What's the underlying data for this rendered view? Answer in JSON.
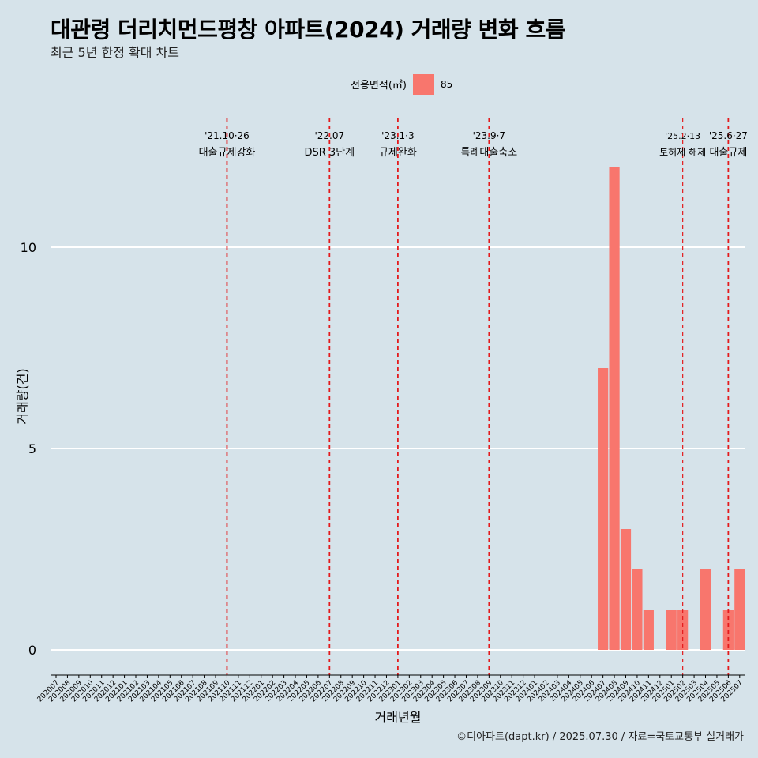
{
  "header": {
    "title": "대관령 더리치먼드평창 아파트(2024) 거래량 변화 흐름",
    "subtitle": "최근 5년 한정 확대 차트"
  },
  "footer": {
    "caption": "©디아파트(dapt.kr) / 2025.07.30 / 자료=국토교통부 실거래가"
  },
  "chart_data": {
    "type": "bar",
    "xlabel": "거래년월",
    "ylabel": "거래량(건)",
    "ylim": [
      0,
      12.5
    ],
    "yticks": [
      0,
      5,
      10
    ],
    "grid": "horizontal",
    "legend": {
      "title": "전용면적(㎡)",
      "placement": "top",
      "entries": [
        {
          "label": "85",
          "color": "#f8766d"
        }
      ]
    },
    "categories": [
      "202007",
      "202008",
      "202009",
      "202010",
      "202011",
      "202012",
      "202101",
      "202102",
      "202103",
      "202104",
      "202105",
      "202106",
      "202107",
      "202108",
      "202109",
      "202110",
      "202111",
      "202112",
      "202201",
      "202202",
      "202203",
      "202204",
      "202205",
      "202206",
      "202207",
      "202208",
      "202209",
      "202210",
      "202211",
      "202212",
      "202301",
      "202302",
      "202303",
      "202304",
      "202305",
      "202306",
      "202307",
      "202308",
      "202309",
      "202310",
      "202311",
      "202312",
      "202401",
      "202402",
      "202403",
      "202404",
      "202405",
      "202406",
      "202407",
      "202408",
      "202409",
      "202410",
      "202411",
      "202412",
      "202501",
      "202502",
      "202503",
      "202504",
      "202505",
      "202506",
      "202507"
    ],
    "series": [
      {
        "name": "85",
        "color": "#f8766d",
        "values": [
          0,
          0,
          0,
          0,
          0,
          0,
          0,
          0,
          0,
          0,
          0,
          0,
          0,
          0,
          0,
          0,
          0,
          0,
          0,
          0,
          0,
          0,
          0,
          0,
          0,
          0,
          0,
          0,
          0,
          0,
          0,
          0,
          0,
          0,
          0,
          0,
          0,
          0,
          0,
          0,
          0,
          0,
          0,
          0,
          0,
          0,
          0,
          0,
          7,
          12,
          3,
          2,
          1,
          0,
          1,
          1,
          0,
          2,
          0,
          1,
          2
        ]
      }
    ],
    "annotations": [
      {
        "x": "202110",
        "date": "'21.10·26",
        "label": "대출규제강화",
        "style": "bold"
      },
      {
        "x": "202207",
        "date": "'22.07",
        "label": "DSR 3단계",
        "style": "bold"
      },
      {
        "x": "202301",
        "date": "'23.1·3",
        "label": "규제완화",
        "style": "bold"
      },
      {
        "x": "202309",
        "date": "'23.9·7",
        "label": "특례대출축소",
        "style": "bold"
      },
      {
        "x": "202502",
        "date": "'25.2·13",
        "label": "토허제 해제",
        "style": "thin"
      },
      {
        "x": "202506",
        "date": "'25.6·27",
        "label": "대출규제",
        "style": "bold"
      }
    ],
    "annotation_color": "#e41a1c"
  }
}
